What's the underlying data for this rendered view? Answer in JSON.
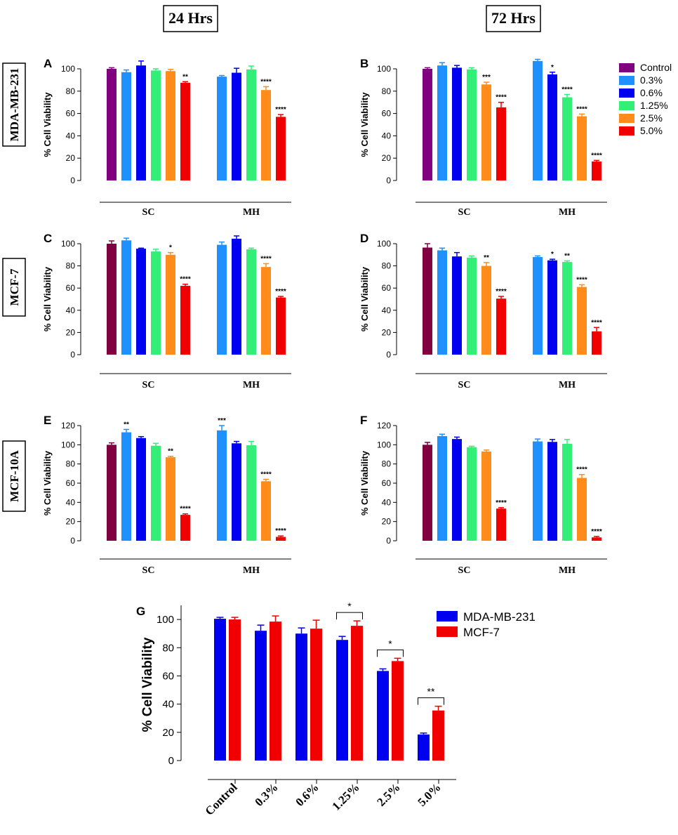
{
  "figure": {
    "col_headers": [
      "24 Hrs",
      "72 Hrs"
    ],
    "row_labels": [
      "MDA-MB-231",
      "MCF-7",
      "MCF-10A"
    ],
    "ylabel": "% Cell Viability",
    "groups": [
      "SC",
      "MH"
    ],
    "legend": [
      "Control",
      "0.3%",
      "0.6%",
      "1.25%",
      "2.5%",
      "5.0%"
    ],
    "colors": {
      "control_purple": "#800080",
      "control_maroon": "#800040",
      "c03": "#1e90ff",
      "c06": "#0000f0",
      "c125": "#33ee77",
      "c25": "#ff8c1a",
      "c50": "#f00000"
    }
  },
  "chart_data": [
    {
      "panel": "A",
      "type": "bar",
      "title": "24 Hrs",
      "row": "MDA-MB-231",
      "ylabel": "% Cell Viability",
      "ylim": [
        0,
        100
      ],
      "yticks": [
        0,
        20,
        40,
        60,
        80,
        100
      ],
      "control_color": "#800080",
      "groups": [
        {
          "name": "SC",
          "bars": [
            {
              "series": "Control",
              "value": 100,
              "err": 1,
              "sig": ""
            },
            {
              "series": "0.3%",
              "value": 97,
              "err": 2,
              "sig": ""
            },
            {
              "series": "0.6%",
              "value": 103,
              "err": 4,
              "sig": ""
            },
            {
              "series": "1.25%",
              "value": 98.5,
              "err": 1.5,
              "sig": ""
            },
            {
              "series": "2.5%",
              "value": 98,
              "err": 1.5,
              "sig": ""
            },
            {
              "series": "5.0%",
              "value": 87.5,
              "err": 1,
              "sig": "**"
            }
          ]
        },
        {
          "name": "MH",
          "bars": [
            {
              "series": "0.3%",
              "value": 93,
              "err": 1,
              "sig": ""
            },
            {
              "series": "0.6%",
              "value": 96.5,
              "err": 4,
              "sig": ""
            },
            {
              "series": "1.25%",
              "value": 99.5,
              "err": 3,
              "sig": ""
            },
            {
              "series": "2.5%",
              "value": 81,
              "err": 3,
              "sig": "****"
            },
            {
              "series": "5.0%",
              "value": 57,
              "err": 2,
              "sig": "****"
            }
          ]
        }
      ]
    },
    {
      "panel": "B",
      "type": "bar",
      "title": "72 Hrs",
      "row": "MDA-MB-231",
      "ylabel": "% Cell Viability",
      "ylim": [
        0,
        100
      ],
      "yticks": [
        0,
        20,
        40,
        60,
        80,
        100
      ],
      "control_color": "#800080",
      "groups": [
        {
          "name": "SC",
          "bars": [
            {
              "series": "Control",
              "value": 100,
              "err": 1,
              "sig": ""
            },
            {
              "series": "0.3%",
              "value": 103,
              "err": 2.5,
              "sig": ""
            },
            {
              "series": "0.6%",
              "value": 101,
              "err": 2,
              "sig": ""
            },
            {
              "series": "1.25%",
              "value": 99.5,
              "err": 1.5,
              "sig": ""
            },
            {
              "series": "2.5%",
              "value": 86,
              "err": 2,
              "sig": "***"
            },
            {
              "series": "5.0%",
              "value": 65.5,
              "err": 4.5,
              "sig": "****"
            }
          ]
        },
        {
          "name": "MH",
          "bars": [
            {
              "series": "0.3%",
              "value": 107,
              "err": 1.5,
              "sig": ""
            },
            {
              "series": "0.6%",
              "value": 95,
              "err": 2,
              "sig": "*"
            },
            {
              "series": "1.25%",
              "value": 74.5,
              "err": 2.5,
              "sig": "****"
            },
            {
              "series": "2.5%",
              "value": 57.5,
              "err": 2,
              "sig": "****"
            },
            {
              "series": "5.0%",
              "value": 17,
              "err": 1,
              "sig": "****"
            }
          ]
        }
      ]
    },
    {
      "panel": "C",
      "type": "bar",
      "title": "24 Hrs",
      "row": "MCF-7",
      "ylabel": "% Cell Viability",
      "ylim": [
        0,
        100
      ],
      "yticks": [
        0,
        20,
        40,
        60,
        80,
        100
      ],
      "control_color": "#800040",
      "groups": [
        {
          "name": "SC",
          "bars": [
            {
              "series": "Control",
              "value": 100,
              "err": 2.5,
              "sig": ""
            },
            {
              "series": "0.3%",
              "value": 103,
              "err": 2,
              "sig": ""
            },
            {
              "series": "0.6%",
              "value": 95.5,
              "err": 0.5,
              "sig": ""
            },
            {
              "series": "1.25%",
              "value": 93,
              "err": 2,
              "sig": ""
            },
            {
              "series": "2.5%",
              "value": 90,
              "err": 2,
              "sig": "*"
            },
            {
              "series": "5.0%",
              "value": 62,
              "err": 1.5,
              "sig": "****"
            }
          ]
        },
        {
          "name": "MH",
          "bars": [
            {
              "series": "0.3%",
              "value": 99,
              "err": 2.5,
              "sig": ""
            },
            {
              "series": "0.6%",
              "value": 104.5,
              "err": 2.5,
              "sig": ""
            },
            {
              "series": "1.25%",
              "value": 95,
              "err": 1,
              "sig": ""
            },
            {
              "series": "2.5%",
              "value": 79,
              "err": 3,
              "sig": "****"
            },
            {
              "series": "5.0%",
              "value": 51.5,
              "err": 1,
              "sig": "****"
            }
          ]
        }
      ]
    },
    {
      "panel": "D",
      "type": "bar",
      "title": "72 Hrs",
      "row": "MCF-7",
      "ylabel": "% Cell Viability",
      "ylim": [
        0,
        100
      ],
      "yticks": [
        0,
        20,
        40,
        60,
        80,
        100
      ],
      "control_color": "#800040",
      "groups": [
        {
          "name": "SC",
          "bars": [
            {
              "series": "Control",
              "value": 96.5,
              "err": 3.5,
              "sig": ""
            },
            {
              "series": "0.3%",
              "value": 94,
              "err": 2,
              "sig": ""
            },
            {
              "series": "0.6%",
              "value": 88.5,
              "err": 3.5,
              "sig": ""
            },
            {
              "series": "1.25%",
              "value": 87.5,
              "err": 1.5,
              "sig": ""
            },
            {
              "series": "2.5%",
              "value": 80,
              "err": 3,
              "sig": "**"
            },
            {
              "series": "5.0%",
              "value": 50.5,
              "err": 2,
              "sig": "****"
            }
          ]
        },
        {
          "name": "MH",
          "bars": [
            {
              "series": "0.3%",
              "value": 88,
              "err": 1,
              "sig": ""
            },
            {
              "series": "0.6%",
              "value": 85,
              "err": 1,
              "sig": "*"
            },
            {
              "series": "1.25%",
              "value": 83.5,
              "err": 1,
              "sig": "**"
            },
            {
              "series": "2.5%",
              "value": 61,
              "err": 2,
              "sig": "****"
            },
            {
              "series": "5.0%",
              "value": 21,
              "err": 3.5,
              "sig": "****"
            }
          ]
        }
      ]
    },
    {
      "panel": "E",
      "type": "bar",
      "title": "24 Hrs",
      "row": "MCF-10A",
      "ylabel": "% Cell Viability",
      "ylim": [
        0,
        120
      ],
      "yticks": [
        0,
        20,
        40,
        60,
        80,
        100,
        120
      ],
      "control_color": "#800040",
      "groups": [
        {
          "name": "SC",
          "bars": [
            {
              "series": "Control",
              "value": 100,
              "err": 2,
              "sig": ""
            },
            {
              "series": "0.3%",
              "value": 113,
              "err": 3,
              "sig": "**"
            },
            {
              "series": "0.6%",
              "value": 107,
              "err": 1.5,
              "sig": ""
            },
            {
              "series": "1.25%",
              "value": 99,
              "err": 2.5,
              "sig": ""
            },
            {
              "series": "2.5%",
              "value": 87,
              "err": 1,
              "sig": "**"
            },
            {
              "series": "5.0%",
              "value": 27,
              "err": 1,
              "sig": "****"
            }
          ]
        },
        {
          "name": "MH",
          "bars": [
            {
              "series": "0.3%",
              "value": 115,
              "err": 5,
              "sig": "***"
            },
            {
              "series": "0.6%",
              "value": 101.5,
              "err": 2,
              "sig": ""
            },
            {
              "series": "1.25%",
              "value": 99.5,
              "err": 4,
              "sig": ""
            },
            {
              "series": "2.5%",
              "value": 62,
              "err": 2,
              "sig": "****"
            },
            {
              "series": "5.0%",
              "value": 4,
              "err": 1,
              "sig": "****"
            }
          ]
        }
      ]
    },
    {
      "panel": "F",
      "type": "bar",
      "title": "72 Hrs",
      "row": "MCF-10A",
      "ylabel": "% Cell Viability",
      "ylim": [
        0,
        120
      ],
      "yticks": [
        0,
        20,
        40,
        60,
        80,
        100,
        120
      ],
      "control_color": "#800040",
      "groups": [
        {
          "name": "SC",
          "bars": [
            {
              "series": "Control",
              "value": 100,
              "err": 2.5,
              "sig": ""
            },
            {
              "series": "0.3%",
              "value": 109,
              "err": 2,
              "sig": ""
            },
            {
              "series": "0.6%",
              "value": 106,
              "err": 2,
              "sig": ""
            },
            {
              "series": "1.25%",
              "value": 97.5,
              "err": 1,
              "sig": ""
            },
            {
              "series": "2.5%",
              "value": 93,
              "err": 1.5,
              "sig": ""
            },
            {
              "series": "5.0%",
              "value": 33.5,
              "err": 1,
              "sig": "****"
            }
          ]
        },
        {
          "name": "MH",
          "bars": [
            {
              "series": "0.3%",
              "value": 103.5,
              "err": 2.5,
              "sig": ""
            },
            {
              "series": "0.6%",
              "value": 103,
              "err": 2.5,
              "sig": ""
            },
            {
              "series": "1.25%",
              "value": 101,
              "err": 4.5,
              "sig": ""
            },
            {
              "series": "2.5%",
              "value": 65.5,
              "err": 3.5,
              "sig": "****"
            },
            {
              "series": "5.0%",
              "value": 3.5,
              "err": 1,
              "sig": "****"
            }
          ]
        }
      ]
    },
    {
      "panel": "G",
      "type": "bar",
      "ylabel": "% Cell Viability",
      "ylim": [
        0,
        110
      ],
      "yticks": [
        0,
        20,
        40,
        60,
        80,
        100
      ],
      "categories": [
        "Control",
        "0.3%",
        "0.6%",
        "1.25%",
        "2.5%",
        "5.0%"
      ],
      "series": [
        {
          "name": "MDA-MB-231",
          "color": "#0000f0",
          "values": [
            100.5,
            92,
            90,
            85.5,
            63.5,
            18.5
          ],
          "err": [
            1,
            4,
            4,
            2.5,
            1.5,
            1
          ]
        },
        {
          "name": "MCF-7",
          "color": "#f00000",
          "values": [
            100,
            98.5,
            93.5,
            95.5,
            70.5,
            35.5
          ],
          "err": [
            1.5,
            4,
            6,
            3.5,
            2,
            3
          ]
        }
      ],
      "significance": [
        "",
        "",
        "",
        "*",
        "*",
        "**"
      ],
      "legend_position": "top-right"
    }
  ]
}
